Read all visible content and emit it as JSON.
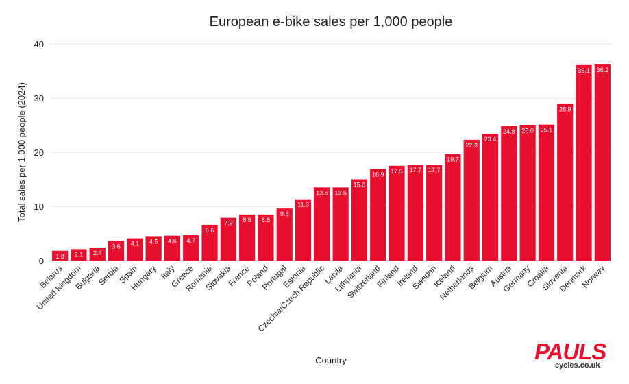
{
  "colors": {
    "bar": "#e8102e",
    "grid": "#e3e3e3",
    "text": "#222222",
    "logo": "#e8102e"
  },
  "logo": {
    "main": "PAULS",
    "sub": "cycles.co.uk"
  },
  "chart_data": {
    "type": "bar",
    "title": "European e-bike sales per 1,000 people",
    "xlabel": "Country",
    "ylabel": "Total sales per 1,000 people (2024)",
    "ylim": [
      0,
      40
    ],
    "yticks": [
      0,
      10,
      20,
      30,
      40
    ],
    "grid": true,
    "categories": [
      "Belarus",
      "United Kingdom",
      "Bulgaria",
      "Serbia",
      "Spain",
      "Hungary",
      "Italy",
      "Greece",
      "Romania",
      "Slovakia",
      "France",
      "Poland",
      "Portugal",
      "Estonia",
      "Czechia/Czech Republic",
      "Latvia",
      "Lithuania",
      "Switzerland",
      "Finland",
      "Ireland",
      "Sweden",
      "Iceland",
      "Netherlands",
      "Belgium",
      "Austria",
      "Germany",
      "Croatia",
      "Slovenia",
      "Denmark",
      "Norway"
    ],
    "values": [
      1.8,
      2.1,
      2.4,
      3.6,
      4.1,
      4.5,
      4.6,
      4.7,
      6.6,
      7.9,
      8.5,
      8.5,
      9.6,
      11.3,
      13.5,
      13.5,
      15.0,
      16.9,
      17.5,
      17.7,
      17.7,
      19.7,
      22.3,
      23.4,
      24.8,
      25.0,
      25.1,
      28.9,
      36.1,
      36.2
    ],
    "data_labels": [
      "1.8",
      "2.1",
      "2.4",
      "3.6",
      "4.1",
      "4.5",
      "4.6",
      "4.7",
      "6.6",
      "7.9",
      "8.5",
      "8.5",
      "9.6",
      "11.3",
      "13.5",
      "13.5",
      "15.0",
      "16.9",
      "17.5",
      "17.7",
      "17.7",
      "19.7",
      "22.3",
      "23.4",
      "24.8",
      "25.0",
      "25.1",
      "28.9",
      "36.1",
      "36.2"
    ]
  }
}
